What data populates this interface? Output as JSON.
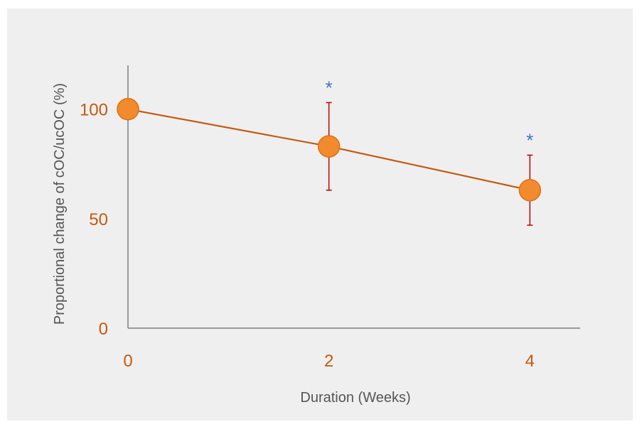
{
  "chart_data": {
    "type": "line",
    "title": "",
    "xlabel": "Duration  (Weeks)",
    "ylabel": "Proportional change of cOC/ucOC (%)",
    "x": [
      0,
      2,
      4
    ],
    "x_ticks": [
      "0",
      "2",
      "4"
    ],
    "y_ticks": [
      "0",
      "50",
      "100"
    ],
    "xlim": [
      0,
      4.5
    ],
    "ylim": [
      0,
      120
    ],
    "grid": false,
    "series": [
      {
        "values": [
          100,
          83,
          63
        ],
        "error_upper": [
          100,
          103,
          79
        ],
        "error_lower": [
          100,
          63,
          47
        ],
        "significance": [
          "",
          "*",
          "*"
        ]
      }
    ]
  },
  "colors": {
    "background": "#efefef",
    "line": "#c55a11",
    "marker": "#f28a2e",
    "error_bar": "#c00000",
    "tick_label": "#c55a11",
    "axis_title": "#595959",
    "significance": "#4472c4",
    "axis": "#7f7f7f"
  }
}
